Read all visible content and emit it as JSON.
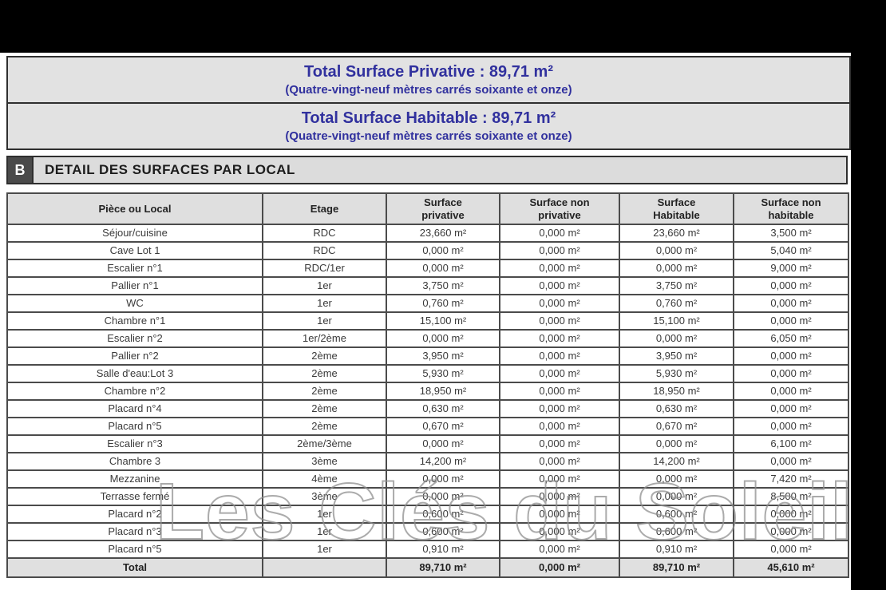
{
  "banners": [
    {
      "title": "Total Surface Privative : 89,71 m²",
      "subtitle": "(Quatre-vingt-neuf mètres carrés soixante et onze)"
    },
    {
      "title": "Total Surface Habitable : 89,71 m²",
      "subtitle": "(Quatre-vingt-neuf mètres carrés soixante et onze)"
    }
  ],
  "section": {
    "letter": "B",
    "title": "DETAIL DES SURFACES PAR LOCAL"
  },
  "table": {
    "column_keys": [
      "piece",
      "etage",
      "surface_privative",
      "surface_non_privative",
      "surface_habitable",
      "surface_non_habitable"
    ],
    "headers": [
      "Pièce ou Local",
      "Etage",
      "Surface\nprivative",
      "Surface non\nprivative",
      "Surface\nHabitable",
      "Surface non\nhabitable"
    ],
    "rows": [
      [
        "Séjour/cuisine",
        "RDC",
        "23,660 m²",
        "0,000 m²",
        "23,660 m²",
        "3,500 m²"
      ],
      [
        "Cave Lot 1",
        "RDC",
        "0,000 m²",
        "0,000 m²",
        "0,000 m²",
        "5,040 m²"
      ],
      [
        "Escalier n°1",
        "RDC/1er",
        "0,000 m²",
        "0,000 m²",
        "0,000 m²",
        "9,000 m²"
      ],
      [
        "Pallier n°1",
        "1er",
        "3,750 m²",
        "0,000 m²",
        "3,750 m²",
        "0,000 m²"
      ],
      [
        "WC",
        "1er",
        "0,760 m²",
        "0,000 m²",
        "0,760 m²",
        "0,000 m²"
      ],
      [
        "Chambre n°1",
        "1er",
        "15,100 m²",
        "0,000 m²",
        "15,100 m²",
        "0,000 m²"
      ],
      [
        "Escalier n°2",
        "1er/2ème",
        "0,000 m²",
        "0,000 m²",
        "0,000 m²",
        "6,050 m²"
      ],
      [
        "Pallier  n°2",
        "2ème",
        "3,950 m²",
        "0,000 m²",
        "3,950 m²",
        "0,000 m²"
      ],
      [
        "Salle d'eau:Lot 3",
        "2ème",
        "5,930 m²",
        "0,000 m²",
        "5,930 m²",
        "0,000 m²"
      ],
      [
        "Chambre n°2",
        "2ème",
        "18,950 m²",
        "0,000 m²",
        "18,950 m²",
        "0,000 m²"
      ],
      [
        "Placard n°4",
        "2ème",
        "0,630 m²",
        "0,000 m²",
        "0,630 m²",
        "0,000 m²"
      ],
      [
        "Placard n°5",
        "2ème",
        "0,670 m²",
        "0,000 m²",
        "0,670 m²",
        "0,000 m²"
      ],
      [
        "Escalier n°3",
        "2ème/3ème",
        "0,000 m²",
        "0,000 m²",
        "0,000 m²",
        "6,100 m²"
      ],
      [
        "Chambre 3",
        "3ème",
        "14,200 m²",
        "0,000 m²",
        "14,200 m²",
        "0,000 m²"
      ],
      [
        "Mezzanine",
        "4ème",
        "0,000 m²",
        "0,000 m²",
        "0,000 m²",
        "7,420 m²"
      ],
      [
        "Terrasse fermé",
        "3ème",
        "0,000 m²",
        "0,000 m²",
        "0,000 m²",
        "8,500 m²"
      ],
      [
        "Placard n°2",
        "1er",
        "0,600 m²",
        "0,000 m²",
        "0,600 m²",
        "0,000 m²"
      ],
      [
        "Placard n°3",
        "1er",
        "0,600 m²",
        "0,000 m²",
        "0,600 m²",
        "0,000 m²"
      ],
      [
        "Placard n°5",
        "1er",
        "0,910 m²",
        "0,000 m²",
        "0,910 m²",
        "0,000 m²"
      ]
    ],
    "total_row": [
      "Total",
      "",
      "89,710 m²",
      "0,000 m²",
      "89,710 m²",
      "45,610 m²"
    ]
  },
  "watermark": {
    "text": "Les Clés du Soleil"
  },
  "colors": {
    "accent_blue": "#31319e",
    "banner_bg": "#e2e2e2",
    "section_letter_bg": "#4a4a4a",
    "header_bg": "#dfdfdf",
    "border": "#4b4b4b"
  }
}
